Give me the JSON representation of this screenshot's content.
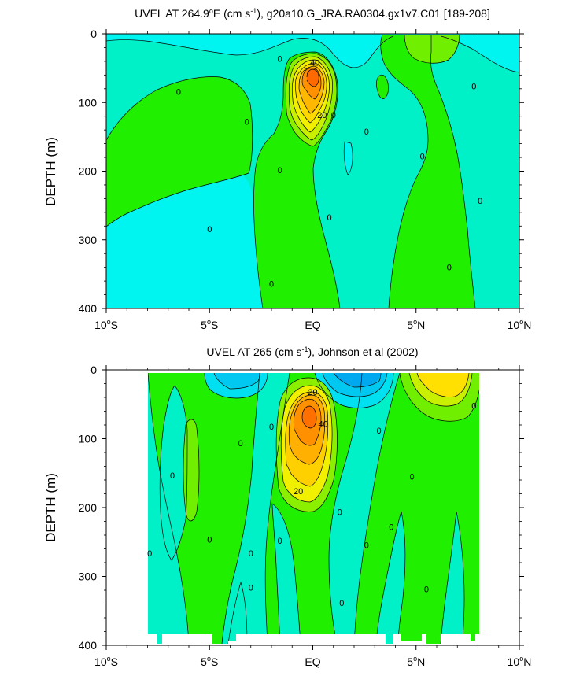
{
  "chart_data": [
    {
      "type": "contour",
      "title": "UVEL AT 264.9°E (cm s-1), g20a10.G_JRA.RA0304.gx1v7.C01 [189-208]",
      "title_parts": {
        "pre": "UVEL AT 264.9",
        "deg": "o",
        "mid": "E (cm s",
        "sup": "-1",
        "post": "), g20a10.G_JRA.RA0304.gx1v7.C01 [189-208]"
      },
      "xlabel": "",
      "ylabel": "DEPTH (m)",
      "xlim": [
        -10,
        10
      ],
      "ylim": [
        400,
        0
      ],
      "x_ticks": [
        {
          "value": -10,
          "num": "10",
          "hemi": "S"
        },
        {
          "value": -5,
          "num": "5",
          "hemi": "S"
        },
        {
          "value": 0,
          "label": "EQ"
        },
        {
          "value": 5,
          "num": "5",
          "hemi": "N"
        },
        {
          "value": 10,
          "num": "10",
          "hemi": "N"
        }
      ],
      "y_ticks": [
        0,
        100,
        200,
        300,
        400
      ],
      "data_lon_range": [
        -10,
        10
      ],
      "data_depth_range": [
        5,
        400
      ],
      "contour_interval": 5,
      "contour_labels": [
        {
          "text": "40",
          "lon": 0.1,
          "depth": 42
        },
        {
          "text": "20",
          "lon": 0.45,
          "depth": 118
        },
        {
          "text": "0",
          "lon": -6.5,
          "depth": 84
        },
        {
          "text": "0",
          "lon": -3.2,
          "depth": 128
        },
        {
          "text": "0",
          "lon": -1.6,
          "depth": 36
        },
        {
          "text": "0",
          "lon": 1.0,
          "depth": 118
        },
        {
          "text": "0",
          "lon": -1.6,
          "depth": 198
        },
        {
          "text": "0",
          "lon": 2.6,
          "depth": 142
        },
        {
          "text": "0",
          "lon": 5.3,
          "depth": 178
        },
        {
          "text": "0",
          "lon": 7.8,
          "depth": 76
        },
        {
          "text": "0",
          "lon": 8.1,
          "depth": 243
        },
        {
          "text": "0",
          "lon": -5.0,
          "depth": 284
        },
        {
          "text": "0",
          "lon": 0.8,
          "depth": 267
        },
        {
          "text": "0",
          "lon": -2.0,
          "depth": 364
        },
        {
          "text": "0",
          "lon": 6.6,
          "depth": 340
        }
      ]
    },
    {
      "type": "contour",
      "title": "UVEL AT 265 (cm s-1), Johnson et al (2002)",
      "title_parts": {
        "pre": "UVEL AT 265 (cm s",
        "sup": "-1",
        "post": "), Johnson et al (2002)"
      },
      "xlabel": "",
      "ylabel": "DEPTH (m)",
      "xlim": [
        -10,
        10
      ],
      "ylim": [
        400,
        0
      ],
      "x_ticks": [
        {
          "value": -10,
          "num": "10",
          "hemi": "S"
        },
        {
          "value": -5,
          "num": "5",
          "hemi": "S"
        },
        {
          "value": 0,
          "label": "EQ"
        },
        {
          "value": 5,
          "num": "5",
          "hemi": "N"
        },
        {
          "value": 10,
          "num": "10",
          "hemi": "N"
        }
      ],
      "y_ticks": [
        0,
        100,
        200,
        300,
        400
      ],
      "data_lon_range": [
        -8,
        8
      ],
      "data_depth_range": [
        5,
        390
      ],
      "contour_interval": 5,
      "contour_labels": [
        {
          "text": "20",
          "lon": 0.0,
          "depth": 32
        },
        {
          "text": "40",
          "lon": 0.5,
          "depth": 78
        },
        {
          "text": "20",
          "lon": -0.7,
          "depth": 176
        },
        {
          "text": "0",
          "lon": -2.0,
          "depth": 82
        },
        {
          "text": "0",
          "lon": -3.5,
          "depth": 106
        },
        {
          "text": "0",
          "lon": -6.8,
          "depth": 153
        },
        {
          "text": "0",
          "lon": 3.2,
          "depth": 88
        },
        {
          "text": "0",
          "lon": 4.8,
          "depth": 155
        },
        {
          "text": "0",
          "lon": 7.8,
          "depth": 52
        },
        {
          "text": "0",
          "lon": 1.3,
          "depth": 206
        },
        {
          "text": "0",
          "lon": 3.8,
          "depth": 228
        },
        {
          "text": "0",
          "lon": 2.6,
          "depth": 254
        },
        {
          "text": "0",
          "lon": -5.0,
          "depth": 246
        },
        {
          "text": "0",
          "lon": -1.6,
          "depth": 248
        },
        {
          "text": "0",
          "lon": -7.9,
          "depth": 266
        },
        {
          "text": "0",
          "lon": -3.0,
          "depth": 266
        },
        {
          "text": "0",
          "lon": -3.0,
          "depth": 316
        },
        {
          "text": "0",
          "lon": 5.5,
          "depth": 318
        },
        {
          "text": "0",
          "lon": 1.4,
          "depth": 338
        }
      ]
    }
  ]
}
